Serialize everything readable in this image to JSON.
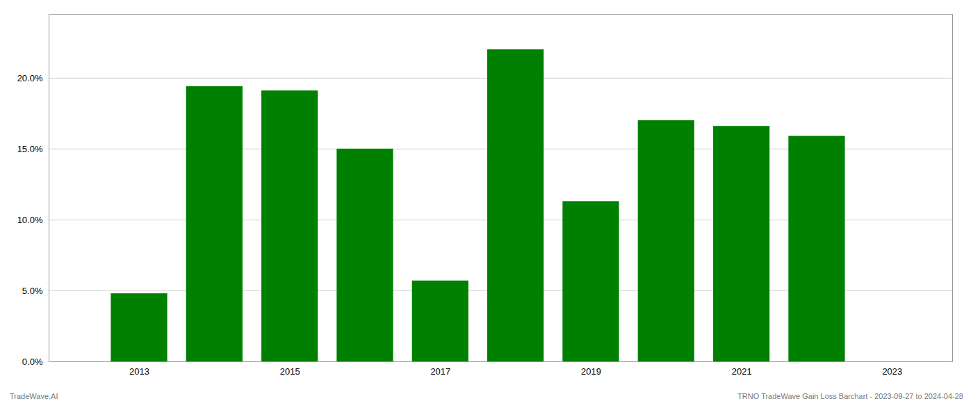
{
  "chart_data": {
    "type": "bar",
    "x": [
      2013,
      2014,
      2015,
      2016,
      2017,
      2018,
      2019,
      2020,
      2021,
      2022
    ],
    "values": [
      0.048,
      0.194,
      0.191,
      0.15,
      0.057,
      0.22,
      0.113,
      0.17,
      0.166,
      0.159
    ],
    "color": "#008000",
    "xlim": [
      2011.8,
      2023.8
    ],
    "xticks": [
      2013,
      2015,
      2017,
      2019,
      2021,
      2023
    ],
    "ylim": [
      0,
      0.245
    ],
    "yticks": [
      {
        "value": 0.0,
        "label": "0.0%"
      },
      {
        "value": 0.05,
        "label": "5.0%"
      },
      {
        "value": 0.1,
        "label": "10.0%"
      },
      {
        "value": 0.15,
        "label": "15.0%"
      },
      {
        "value": 0.2,
        "label": "20.0%"
      }
    ],
    "grid": true,
    "annotations": [
      "TradeWave.AI",
      "TRNO TradeWave Gain Loss Barchart - 2023-09-27 to 2024-04-28"
    ]
  }
}
